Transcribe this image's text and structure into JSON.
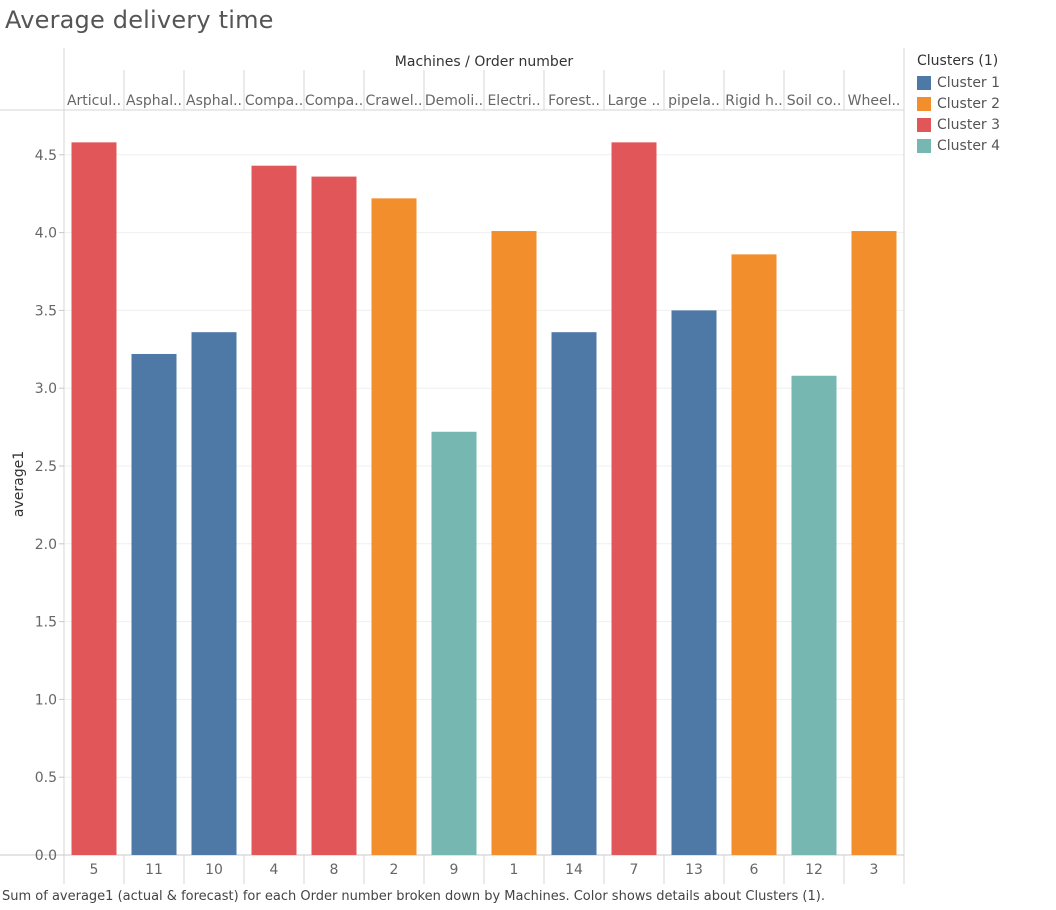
{
  "title": "Average delivery time",
  "caption": "Sum of average1 (actual & forecast)  for each Order number broken down by Machines.  Color shows details about Clusters (1).",
  "chart_data": {
    "type": "bar",
    "header_label": "Machines  /  Order number",
    "ylabel": "average1",
    "ylim": [
      0,
      4.8
    ],
    "yticks": [
      "0.0",
      "0.5",
      "1.0",
      "1.5",
      "2.0",
      "2.5",
      "3.0",
      "3.5",
      "4.0",
      "4.5"
    ],
    "ytick_values": [
      0,
      0.5,
      1,
      1.5,
      2,
      2.5,
      3,
      3.5,
      4,
      4.5
    ],
    "machines": [
      "Articul..",
      "Asphal..",
      "Asphal..",
      "Compa..",
      "Compa..",
      "Crawel..",
      "Demoli..",
      "Electri..",
      "Forest..",
      "Large ..",
      "pipela..",
      "Rigid h..",
      "Soil co..",
      "Wheel.."
    ],
    "order_numbers": [
      "5",
      "11",
      "10",
      "4",
      "8",
      "2",
      "9",
      "1",
      "14",
      "7",
      "13",
      "6",
      "12",
      "3"
    ],
    "values": [
      4.58,
      3.22,
      3.36,
      4.43,
      4.36,
      4.22,
      2.72,
      4.01,
      3.36,
      4.58,
      3.5,
      3.86,
      3.08,
      4.01
    ],
    "clusters": [
      "Cluster 3",
      "Cluster 1",
      "Cluster 1",
      "Cluster 3",
      "Cluster 3",
      "Cluster 2",
      "Cluster 4",
      "Cluster 2",
      "Cluster 1",
      "Cluster 3",
      "Cluster 1",
      "Cluster 2",
      "Cluster 4",
      "Cluster 2"
    ],
    "legend": {
      "title": "Clusters (1)",
      "items": [
        {
          "name": "Cluster 1",
          "color": "#4e79a7"
        },
        {
          "name": "Cluster 2",
          "color": "#f28e2b"
        },
        {
          "name": "Cluster 3",
          "color": "#e15759"
        },
        {
          "name": "Cluster 4",
          "color": "#76b7b2"
        }
      ]
    }
  }
}
